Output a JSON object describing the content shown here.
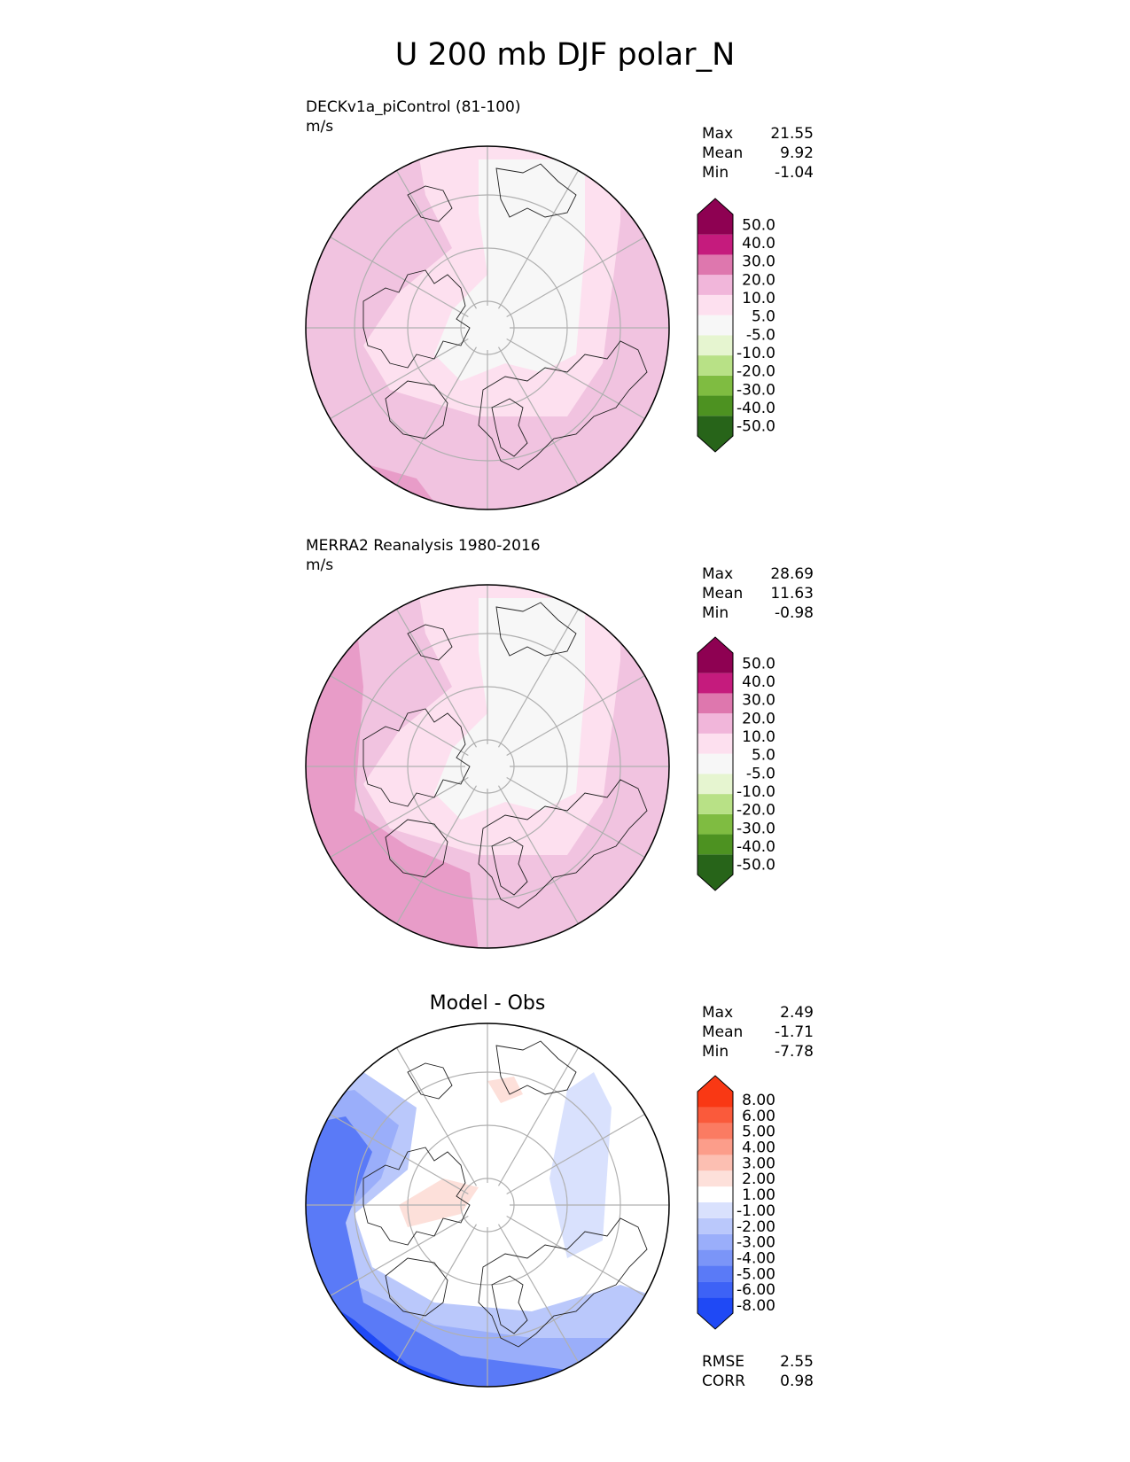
{
  "title": "U 200 mb DJF polar_N",
  "panels": [
    {
      "id": "test",
      "label": "DECKv1a_piControl (81-100)",
      "units": "m/s",
      "stats": [
        {
          "label": "Max",
          "value": "21.55"
        },
        {
          "label": "Mean",
          "value": "9.92"
        },
        {
          "label": "Min",
          "value": "-1.04"
        }
      ]
    },
    {
      "id": "ref",
      "label": "MERRA2 Reanalysis 1980-2016",
      "units": "m/s",
      "stats": [
        {
          "label": "Max",
          "value": "28.69"
        },
        {
          "label": "Mean",
          "value": "11.63"
        },
        {
          "label": "Min",
          "value": "-0.98"
        }
      ]
    },
    {
      "id": "diff",
      "label": "Model - Obs",
      "stats": [
        {
          "label": "Max",
          "value": "2.49"
        },
        {
          "label": "Mean",
          "value": "-1.71"
        },
        {
          "label": "Min",
          "value": "-7.78"
        }
      ],
      "metrics": [
        {
          "label": "RMSE",
          "value": "2.55"
        },
        {
          "label": "CORR",
          "value": "0.98"
        }
      ]
    }
  ],
  "chart_data": [
    {
      "type": "heatmap",
      "projection": "north-polar-stereographic",
      "panel": "test",
      "colorbar": {
        "levels": [
          "-50.0",
          "-40.0",
          "-30.0",
          "-20.0",
          "-10.0",
          "-5.0",
          "5.0",
          "10.0",
          "20.0",
          "30.0",
          "40.0",
          "50.0"
        ],
        "colors": [
          "#276419",
          "#4d9221",
          "#7fbc41",
          "#b8e186",
          "#e6f5d0",
          "#f7f7f7",
          "#fde0ef",
          "#f1b6da",
          "#de77ae",
          "#c51b7d",
          "#8e0152"
        ],
        "extend": "both"
      },
      "field_colors": {
        "weak": "#f7f7f7",
        "low": "#fde0ef",
        "mid": "#f1c3e0",
        "high": "#e89cc8"
      }
    },
    {
      "type": "heatmap",
      "projection": "north-polar-stereographic",
      "panel": "ref",
      "colorbar": {
        "levels": [
          "-50.0",
          "-40.0",
          "-30.0",
          "-20.0",
          "-10.0",
          "-5.0",
          "5.0",
          "10.0",
          "20.0",
          "30.0",
          "40.0",
          "50.0"
        ],
        "colors": [
          "#276419",
          "#4d9221",
          "#7fbc41",
          "#b8e186",
          "#e6f5d0",
          "#f7f7f7",
          "#fde0ef",
          "#f1b6da",
          "#de77ae",
          "#c51b7d",
          "#8e0152"
        ],
        "extend": "both"
      }
    },
    {
      "type": "heatmap",
      "projection": "north-polar-stereographic",
      "panel": "diff",
      "colorbar": {
        "levels": [
          "-8.00",
          "-6.00",
          "-5.00",
          "-4.00",
          "-3.00",
          "-2.00",
          "-1.00",
          "1.00",
          "2.00",
          "3.00",
          "4.00",
          "5.00",
          "6.00",
          "8.00"
        ],
        "colors": [
          "#1f49f5",
          "#3d62f6",
          "#5a7af7",
          "#7b95f8",
          "#9aaefa",
          "#bac8fb",
          "#d9e1fd",
          "#ffffff",
          "#fde0da",
          "#fcbfb2",
          "#fc9d8a",
          "#fb7b62",
          "#fa5a3b",
          "#f93814"
        ],
        "extend": "both"
      }
    }
  ]
}
